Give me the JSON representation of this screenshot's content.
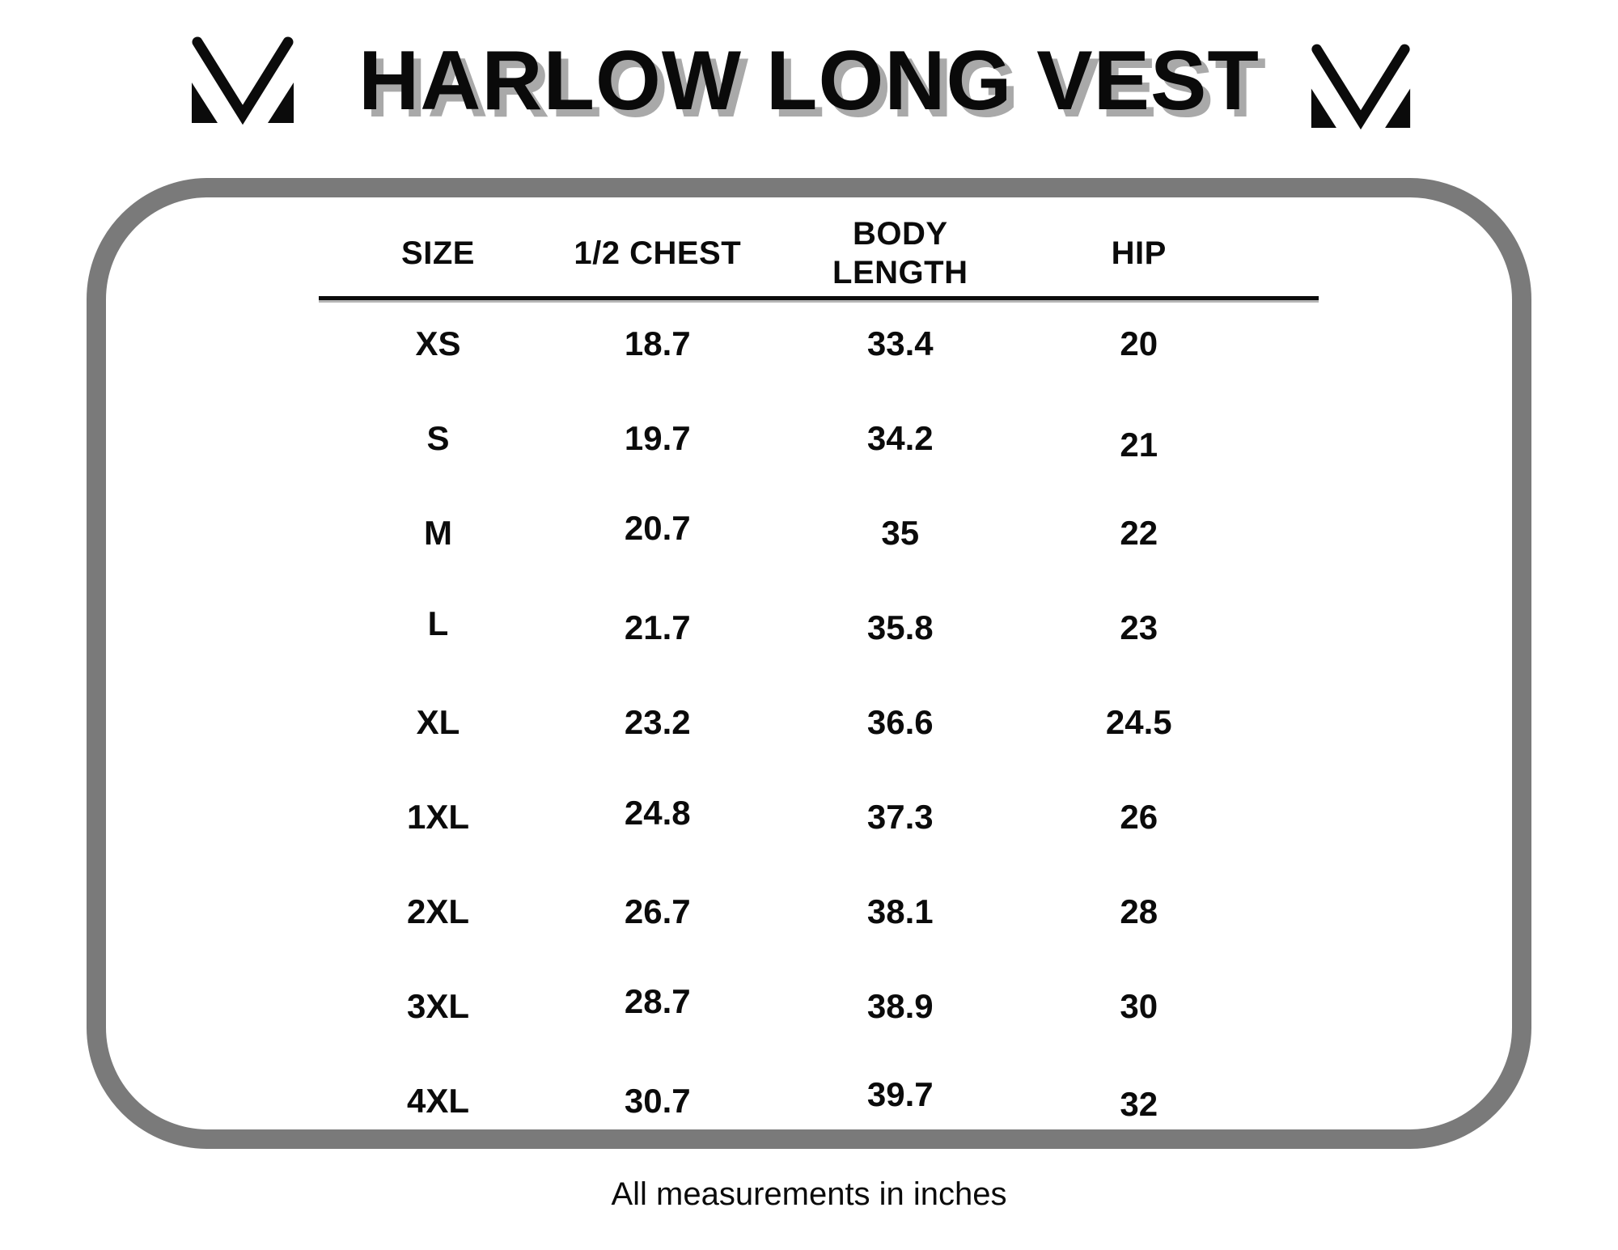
{
  "title": "HARLOW LONG VEST",
  "logo": {
    "name": "m-monogram-logo",
    "color": "#0b0b0b"
  },
  "colors": {
    "background": "#ffffff",
    "text": "#0b0b0b",
    "panel_border_gray": "#7a7a7a",
    "title_shadow_gray": "#a9a9a9"
  },
  "footer_note": "All measurements in inches",
  "chart_data": {
    "type": "table",
    "title": "HARLOW LONG VEST",
    "columns": [
      "SIZE",
      "1/2 CHEST",
      "BODY LENGTH",
      "HIP"
    ],
    "rows": [
      [
        "XS",
        "18.7",
        "33.4",
        "20"
      ],
      [
        "S",
        "19.7",
        "34.2",
        "21"
      ],
      [
        "M",
        "20.7",
        "35",
        "22"
      ],
      [
        "L",
        "21.7",
        "35.8",
        "23"
      ],
      [
        "XL",
        "23.2",
        "36.6",
        "24.5"
      ],
      [
        "1XL",
        "24.8",
        "37.3",
        "26"
      ],
      [
        "2XL",
        "26.7",
        "38.1",
        "28"
      ],
      [
        "3XL",
        "28.7",
        "38.9",
        "30"
      ],
      [
        "4XL",
        "30.7",
        "39.7",
        "32"
      ]
    ],
    "note": "All measurements in inches",
    "layout": {
      "grid": false,
      "header_rule": true,
      "units": "inches"
    }
  }
}
